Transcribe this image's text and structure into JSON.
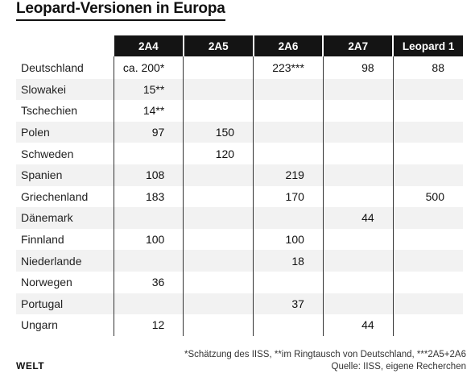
{
  "chart_data": {
    "type": "table",
    "title": "Leopard-Versionen in Europa",
    "columns": [
      "2A4",
      "2A5",
      "2A6",
      "2A7",
      "Leopard 1"
    ],
    "rows": [
      {
        "country": "Deutschland",
        "cells": [
          "ca. 200*",
          "",
          "223***",
          "98",
          "88"
        ]
      },
      {
        "country": "Slowakei",
        "cells": [
          "15**",
          "",
          "",
          "",
          ""
        ]
      },
      {
        "country": "Tschechien",
        "cells": [
          "14**",
          "",
          "",
          "",
          ""
        ]
      },
      {
        "country": "Polen",
        "cells": [
          "97",
          "150",
          "",
          "",
          ""
        ]
      },
      {
        "country": "Schweden",
        "cells": [
          "",
          "120",
          "",
          "",
          ""
        ]
      },
      {
        "country": "Spanien",
        "cells": [
          "108",
          "",
          "219",
          "",
          ""
        ]
      },
      {
        "country": "Griechenland",
        "cells": [
          "183",
          "",
          "170",
          "",
          "500"
        ]
      },
      {
        "country": "Dänemark",
        "cells": [
          "",
          "",
          "",
          "44",
          ""
        ]
      },
      {
        "country": "Finnland",
        "cells": [
          "100",
          "",
          "100",
          "",
          ""
        ]
      },
      {
        "country": "Niederlande",
        "cells": [
          "",
          "",
          "18",
          "",
          ""
        ]
      },
      {
        "country": "Norwegen",
        "cells": [
          "36",
          "",
          "",
          "",
          ""
        ]
      },
      {
        "country": "Portugal",
        "cells": [
          "",
          "",
          "37",
          "",
          ""
        ]
      },
      {
        "country": "Ungarn",
        "cells": [
          "12",
          "",
          "",
          "44",
          ""
        ]
      }
    ]
  },
  "footnote": {
    "line1": "*Schätzung des IISS, **im Ringtausch von Deutschland, ***2A5+2A6",
    "line2": "Quelle: IISS, eigene Recherchen"
  },
  "logo": "WELT",
  "colors": {
    "header_bg": "#141414",
    "row_shade": "#f2f2f2"
  }
}
